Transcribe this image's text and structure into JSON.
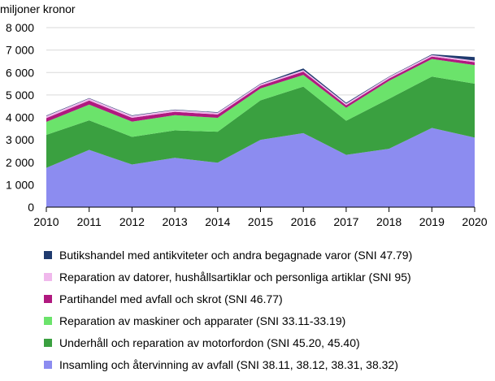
{
  "chart_data": {
    "type": "area",
    "stacked": true,
    "ylabel": "miljoner kronor",
    "x": [
      "2010",
      "2011",
      "2012",
      "2013",
      "2014",
      "2015",
      "2016",
      "2017",
      "2018",
      "2019",
      "2020"
    ],
    "ylim": [
      0,
      8000
    ],
    "yticks": [
      0,
      1000,
      2000,
      3000,
      4000,
      5000,
      6000,
      7000,
      8000
    ],
    "ytick_labels": [
      "0",
      "1 000",
      "2 000",
      "3 000",
      "4 000",
      "5 000",
      "6 000",
      "7 000",
      "8 000"
    ],
    "grid": true,
    "legend_position": "bottom",
    "series": [
      {
        "name": "Insamling och återvinning av avfall (SNI 38.11, 38.12, 38.31, 38.32)",
        "color": "#8c8cf0",
        "values": [
          1750,
          2550,
          1900,
          2200,
          1980,
          3000,
          3300,
          2330,
          2600,
          3530,
          3100
        ]
      },
      {
        "name": "Underhåll och reparation av motorfordon (SNI 45.20, 45.40)",
        "color": "#3aa040",
        "values": [
          1470,
          1320,
          1230,
          1220,
          1380,
          1760,
          2070,
          1520,
          2230,
          2290,
          2400
        ]
      },
      {
        "name": "Reparation av maskiner och apparater (SNI 33.11-33.19)",
        "color": "#6be36b",
        "values": [
          580,
          700,
          680,
          680,
          620,
          530,
          520,
          580,
          800,
          780,
          830
        ]
      },
      {
        "name": "Partihandel med avfall och skrot (SNI 46.77)",
        "color": "#b0197f",
        "values": [
          170,
          180,
          170,
          150,
          150,
          120,
          150,
          110,
          100,
          110,
          130
        ]
      },
      {
        "name": "Reparation av datorer, hushållsartiklar och personliga artiklar (SNI 95)",
        "color": "#f0b8ec",
        "values": [
          90,
          90,
          90,
          80,
          80,
          70,
          70,
          70,
          70,
          70,
          70
        ]
      },
      {
        "name": "Butikshandel med antikviteter och andra begagnade varor (SNI 47.79)",
        "color": "#1f3a6e",
        "values": [
          20,
          20,
          20,
          20,
          20,
          20,
          70,
          40,
          20,
          30,
          160
        ]
      }
    ]
  }
}
